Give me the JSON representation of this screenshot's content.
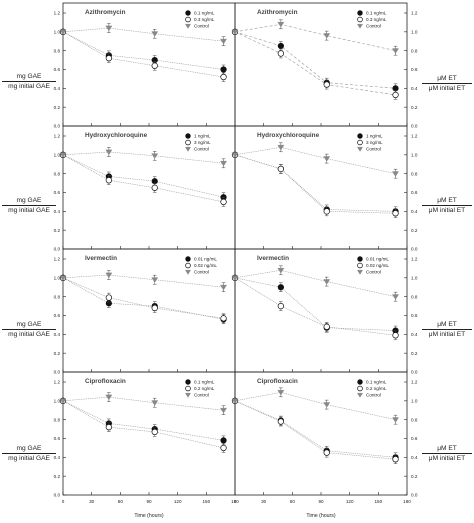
{
  "ylabels": {
    "left": [
      {
        "num": "mg GAE",
        "den": "mg initial GAE"
      },
      {
        "num": "mg GAE",
        "den": "mg initial GAE"
      },
      {
        "num": "mg GAE",
        "den": "mg initial GAE"
      },
      {
        "num": "mg GAE",
        "den": "mg initial GAE"
      }
    ],
    "right": [
      {
        "num": "μM ET",
        "den": "μM initial ET"
      },
      {
        "num": "μM ET",
        "den": "μM initial ET"
      },
      {
        "num": "μM ET",
        "den": "μM initial ET"
      },
      {
        "num": "μM ET",
        "den": "μM initial ET"
      }
    ]
  },
  "xlabel": "Time (hours)",
  "colors": {
    "filled": "#111111",
    "open": "#ffffff",
    "control": "#888888",
    "line": "#999999"
  },
  "chart_data": [
    {
      "type": "line",
      "title": "Azithromycin",
      "col": "left",
      "row": 0,
      "xlim": [
        0,
        180
      ],
      "ylim": [
        0,
        1.2
      ],
      "dashed": false,
      "x": [
        0,
        48,
        96,
        168
      ],
      "series": [
        {
          "name": "0.1 ng/mL",
          "marker": "filled-circle",
          "values": [
            1.0,
            0.75,
            0.7,
            0.6
          ]
        },
        {
          "name": "0.3 ng/mL",
          "marker": "open-circle",
          "values": [
            1.0,
            0.72,
            0.64,
            0.52
          ]
        },
        {
          "name": "Control",
          "marker": "triangle-down",
          "values": [
            1.0,
            1.04,
            0.98,
            0.9
          ]
        }
      ]
    },
    {
      "type": "line",
      "title": "Azithromycin",
      "col": "right",
      "row": 0,
      "xlim": [
        0,
        180
      ],
      "ylim": [
        0,
        1.2
      ],
      "dashed": true,
      "x": [
        0,
        48,
        96,
        168
      ],
      "series": [
        {
          "name": "0.1 ng/mL",
          "marker": "filled-circle",
          "values": [
            1.0,
            0.85,
            0.46,
            0.4
          ]
        },
        {
          "name": "0.3 ng/mL",
          "marker": "open-circle",
          "values": [
            1.0,
            0.77,
            0.44,
            0.33
          ]
        },
        {
          "name": "Control",
          "marker": "triangle-down",
          "values": [
            1.0,
            1.08,
            0.96,
            0.8
          ]
        }
      ]
    },
    {
      "type": "line",
      "title": "Hydroxychloroquine",
      "col": "left",
      "row": 1,
      "xlim": [
        0,
        180
      ],
      "ylim": [
        0,
        1.2
      ],
      "dashed": false,
      "x": [
        0,
        48,
        96,
        168
      ],
      "series": [
        {
          "name": "1 ng/mL",
          "marker": "filled-circle",
          "values": [
            1.0,
            0.77,
            0.72,
            0.55
          ]
        },
        {
          "name": "3 ng/mL",
          "marker": "open-circle",
          "values": [
            1.0,
            0.73,
            0.65,
            0.5
          ]
        },
        {
          "name": "Control",
          "marker": "triangle-down",
          "values": [
            1.0,
            1.03,
            0.99,
            0.91
          ]
        }
      ]
    },
    {
      "type": "line",
      "title": "Hydroxychloroquine",
      "col": "right",
      "row": 1,
      "xlim": [
        0,
        180
      ],
      "ylim": [
        0,
        1.2
      ],
      "dashed": false,
      "x": [
        0,
        48,
        96,
        168
      ],
      "series": [
        {
          "name": "1 ng/mL",
          "marker": "filled-circle",
          "values": [
            1.0,
            0.85,
            0.42,
            0.4
          ]
        },
        {
          "name": "3 ng/mL",
          "marker": "open-circle",
          "values": [
            1.0,
            0.85,
            0.4,
            0.38
          ]
        },
        {
          "name": "Control",
          "marker": "triangle-down",
          "values": [
            1.0,
            1.08,
            0.96,
            0.8
          ]
        }
      ]
    },
    {
      "type": "line",
      "title": "Ivermectin",
      "col": "left",
      "row": 2,
      "xlim": [
        0,
        180
      ],
      "ylim": [
        0,
        1.2
      ],
      "dashed": false,
      "x": [
        0,
        48,
        96,
        168
      ],
      "series": [
        {
          "name": "0.01 ng/mL",
          "marker": "filled-circle",
          "values": [
            1.0,
            0.73,
            0.7,
            0.56
          ]
        },
        {
          "name": "0.02 ng/mL",
          "marker": "open-circle",
          "values": [
            1.0,
            0.79,
            0.68,
            0.57
          ]
        },
        {
          "name": "Control",
          "marker": "triangle-down",
          "values": [
            1.0,
            1.03,
            0.98,
            0.9
          ]
        }
      ]
    },
    {
      "type": "line",
      "title": "Ivermectin",
      "col": "right",
      "row": 2,
      "xlim": [
        0,
        180
      ],
      "ylim": [
        0,
        1.2
      ],
      "dashed": false,
      "x": [
        0,
        48,
        96,
        168
      ],
      "series": [
        {
          "name": "0.01 ng/mL",
          "marker": "filled-circle",
          "values": [
            1.0,
            0.9,
            0.47,
            0.44
          ]
        },
        {
          "name": "0.02 ng/mL",
          "marker": "open-circle",
          "values": [
            1.0,
            0.7,
            0.48,
            0.39
          ]
        },
        {
          "name": "Control",
          "marker": "triangle-down",
          "values": [
            1.0,
            1.08,
            0.96,
            0.8
          ]
        }
      ]
    },
    {
      "type": "line",
      "title": "Ciprofloxacin",
      "col": "left",
      "row": 3,
      "xlim": [
        0,
        180
      ],
      "ylim": [
        0,
        1.2
      ],
      "dashed": false,
      "x": [
        0,
        48,
        96,
        168
      ],
      "series": [
        {
          "name": "0.1 ng/mL",
          "marker": "filled-circle",
          "values": [
            1.0,
            0.76,
            0.7,
            0.58
          ]
        },
        {
          "name": "0.2 ng/mL",
          "marker": "open-circle",
          "values": [
            1.0,
            0.72,
            0.67,
            0.5
          ]
        },
        {
          "name": "Control",
          "marker": "triangle-down",
          "values": [
            1.0,
            1.04,
            0.98,
            0.9
          ]
        }
      ]
    },
    {
      "type": "line",
      "title": "Ciprofloxacin",
      "col": "right",
      "row": 3,
      "xlim": [
        0,
        180
      ],
      "ylim": [
        0,
        1.2
      ],
      "dashed": false,
      "x": [
        0,
        48,
        96,
        168
      ],
      "series": [
        {
          "name": "0.1 ng/mL",
          "marker": "filled-circle",
          "values": [
            1.0,
            0.79,
            0.47,
            0.4
          ]
        },
        {
          "name": "0.2 ng/mL",
          "marker": "open-circle",
          "values": [
            1.0,
            0.78,
            0.45,
            0.38
          ]
        },
        {
          "name": "Control",
          "marker": "triangle-down",
          "values": [
            1.0,
            1.09,
            0.96,
            0.8
          ]
        }
      ]
    }
  ]
}
